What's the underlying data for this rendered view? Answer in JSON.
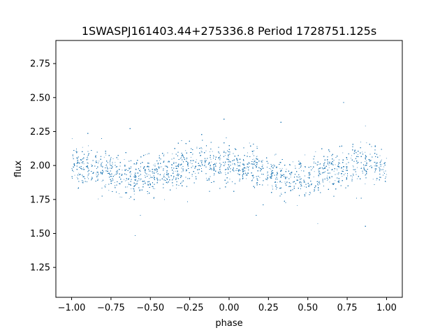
{
  "chart_data": {
    "type": "scatter",
    "title": "1SWASPJ161403.44+275336.8 Period 1728751.125s",
    "xlabel": "phase",
    "ylabel": "flux",
    "xlim": [
      -1.1,
      1.1
    ],
    "ylim": [
      1.03,
      2.92
    ],
    "xticks": [
      -1.0,
      -0.75,
      -0.5,
      -0.25,
      0.0,
      0.25,
      0.5,
      0.75,
      1.0
    ],
    "xtick_labels": [
      "−1.00",
      "−0.75",
      "−0.50",
      "−0.25",
      "0.00",
      "0.25",
      "0.50",
      "0.75",
      "1.00"
    ],
    "yticks": [
      1.25,
      1.5,
      1.75,
      2.0,
      2.25,
      2.5,
      2.75
    ],
    "ytick_labels": [
      "1.25",
      "1.50",
      "1.75",
      "2.00",
      "2.25",
      "2.50",
      "2.75"
    ],
    "grid": false,
    "marker_color": "#1f77b4",
    "series": [
      {
        "x_range": [
          -1.0,
          1.0
        ],
        "median_flux_profile": {
          "phase": [
            -1.0,
            -0.9,
            -0.8,
            -0.7,
            -0.6,
            -0.5,
            -0.4,
            -0.3,
            -0.2,
            -0.1,
            0.0,
            0.1,
            0.2,
            0.3,
            0.4,
            0.5,
            0.6,
            0.7,
            0.8,
            0.9,
            1.0
          ],
          "flux": [
            2.0,
            1.99,
            1.97,
            1.93,
            1.91,
            1.93,
            1.96,
            2.0,
            2.02,
            2.01,
            2.0,
            1.99,
            1.97,
            1.93,
            1.91,
            1.93,
            1.96,
            2.0,
            2.02,
            2.01,
            2.0
          ]
        },
        "approx_point_count": 12000
      }
    ]
  }
}
